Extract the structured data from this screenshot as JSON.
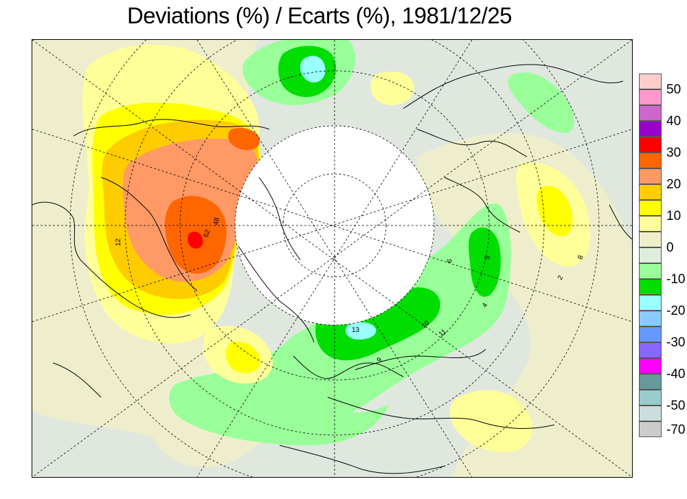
{
  "title": "Deviations (%) / Ecarts (%), 1981/12/25",
  "legend": {
    "swatches": [
      {
        "color": "#ffcccc"
      },
      {
        "color": "#ff99cc"
      },
      {
        "color": "#cc66cc"
      },
      {
        "color": "#9900cc"
      },
      {
        "color": "#ff0000"
      },
      {
        "color": "#ff6600"
      },
      {
        "color": "#ff9966"
      },
      {
        "color": "#ffcc00"
      },
      {
        "color": "#ffff00"
      },
      {
        "color": "#ffff99"
      },
      {
        "color": "#eeeecc"
      },
      {
        "color": "#ddeedd"
      },
      {
        "color": "#99ff99"
      },
      {
        "color": "#00dd00"
      },
      {
        "color": "#99ffff"
      },
      {
        "color": "#88ccff"
      },
      {
        "color": "#6699ff"
      },
      {
        "color": "#8866ff"
      },
      {
        "color": "#ff00ff"
      },
      {
        "color": "#669999"
      },
      {
        "color": "#99cccc"
      },
      {
        "color": "#ccdddd"
      },
      {
        "color": "#cccccc"
      }
    ],
    "labels": [
      "50",
      "40",
      "30",
      "20",
      "10",
      "0",
      "-10",
      "-20",
      "-30",
      "-40",
      "-50",
      "-70"
    ]
  },
  "map_labels": [
    "62",
    "48",
    "12",
    "13",
    "10",
    "11",
    "6",
    "9",
    "8",
    "5",
    "4",
    "2"
  ],
  "colors": {
    "background": "#dfe7df",
    "pole_mask": "#ffffff",
    "graticule": "#000000"
  }
}
